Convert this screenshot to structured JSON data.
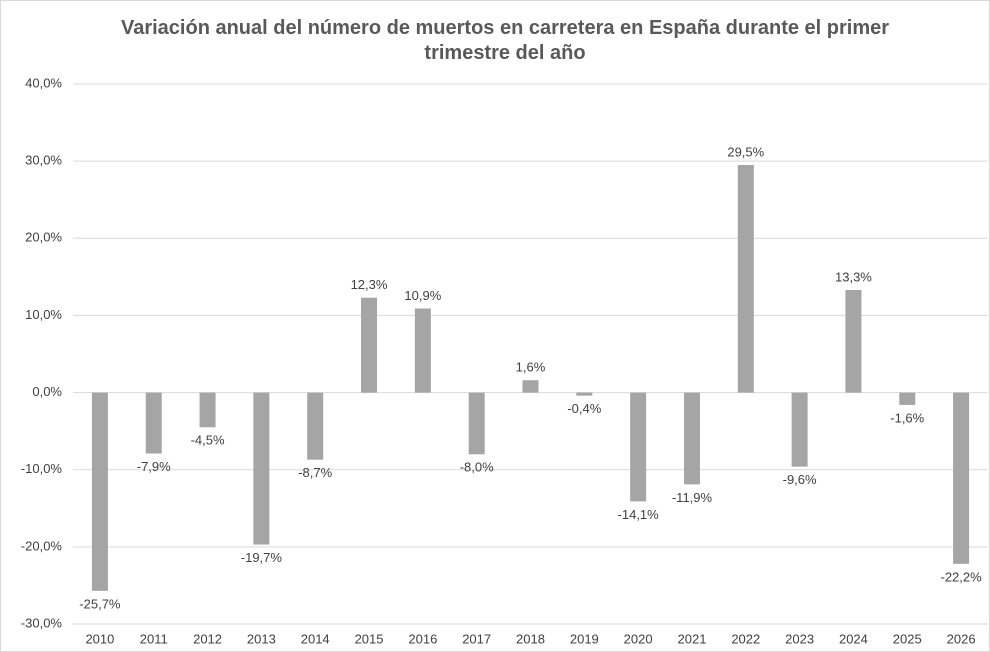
{
  "chart_data": {
    "type": "bar",
    "title": "Variación anual del número de muertos en carretera en España durante el primer trimestre del año",
    "categories": [
      "2010",
      "2011",
      "2012",
      "2013",
      "2014",
      "2015",
      "2016",
      "2017",
      "2018",
      "2019",
      "2020",
      "2021",
      "2022",
      "2023",
      "2024",
      "2025",
      "2026"
    ],
    "values": [
      -25.7,
      -7.9,
      -4.5,
      -19.7,
      -8.7,
      12.3,
      10.9,
      -8.0,
      1.6,
      -0.4,
      -14.1,
      -11.9,
      29.5,
      -9.6,
      13.3,
      -1.6,
      -22.2
    ],
    "value_labels": [
      "-25,7%",
      "-7,9%",
      "-4,5%",
      "-19,7%",
      "-8,7%",
      "12,3%",
      "10,9%",
      "-8,0%",
      "1,6%",
      "-0,4%",
      "-14,1%",
      "-11,9%",
      "29,5%",
      "-9,6%",
      "13,3%",
      "-1,6%",
      "-22,2%"
    ],
    "color": "#a5a5a5",
    "ylim": [
      -30,
      40
    ],
    "yticks": [
      {
        "value": -30,
        "label": "-30,0%"
      },
      {
        "value": -20,
        "label": "-20,0%"
      },
      {
        "value": -10,
        "label": "-10,0%"
      },
      {
        "value": 0,
        "label": "0,0%"
      },
      {
        "value": 10,
        "label": "10,0%"
      },
      {
        "value": 20,
        "label": "20,0%"
      },
      {
        "value": 30,
        "label": "30,0%"
      },
      {
        "value": 40,
        "label": "40,0%"
      }
    ],
    "grid": true
  }
}
